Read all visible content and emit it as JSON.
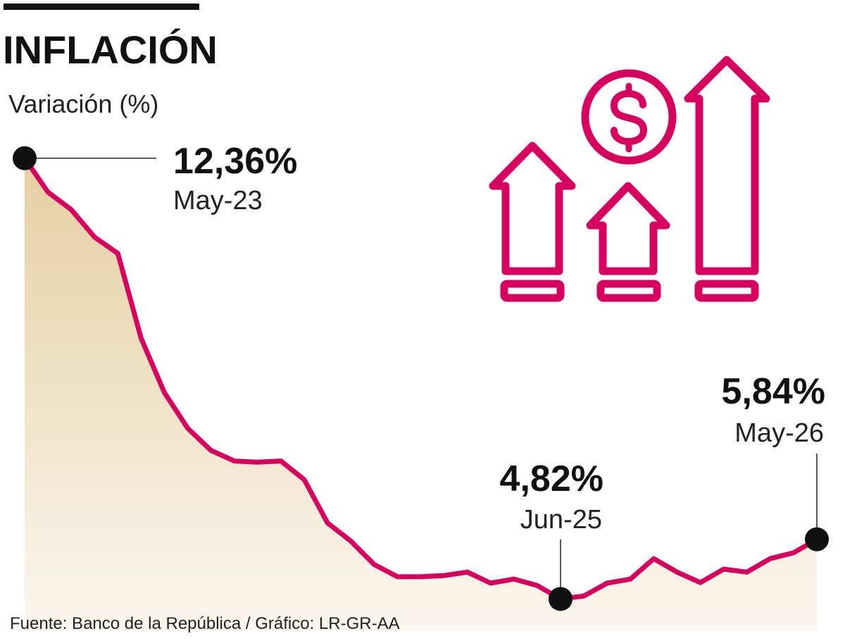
{
  "chart_data": {
    "type": "area",
    "title": "INFLACIÓN",
    "ylabel": "Variación (%)",
    "x_start": "May-23",
    "x_end": "May-26",
    "ylim": [
      4.5,
      12.5
    ],
    "values": [
      12.36,
      11.78,
      11.48,
      11.01,
      10.73,
      9.28,
      8.35,
      7.74,
      7.36,
      7.18,
      7.16,
      7.18,
      6.86,
      6.12,
      5.81,
      5.41,
      5.2,
      5.2,
      5.22,
      5.28,
      5.09,
      5.16,
      5.05,
      4.82,
      4.87,
      5.09,
      5.16,
      5.51,
      5.28,
      5.1,
      5.33,
      5.28,
      5.51,
      5.61,
      5.84
    ],
    "annotations": [
      {
        "index": 0,
        "value": "12,36%",
        "label": "May-23",
        "pos": "right"
      },
      {
        "index": 23,
        "value": "4,82%",
        "label": "Jun-25",
        "pos": "above"
      },
      {
        "index": 34,
        "value": "5,84%",
        "label": "May-26",
        "pos": "above"
      }
    ],
    "source": "Fuente: Banco de la República / Gráfico: LR-GR-AA"
  },
  "colors": {
    "line": "#d6005f",
    "fill_top": "#e6cfa1",
    "dot": "#111111",
    "icon": "#d6005f"
  },
  "icon": "money-growth-arrows-icon"
}
